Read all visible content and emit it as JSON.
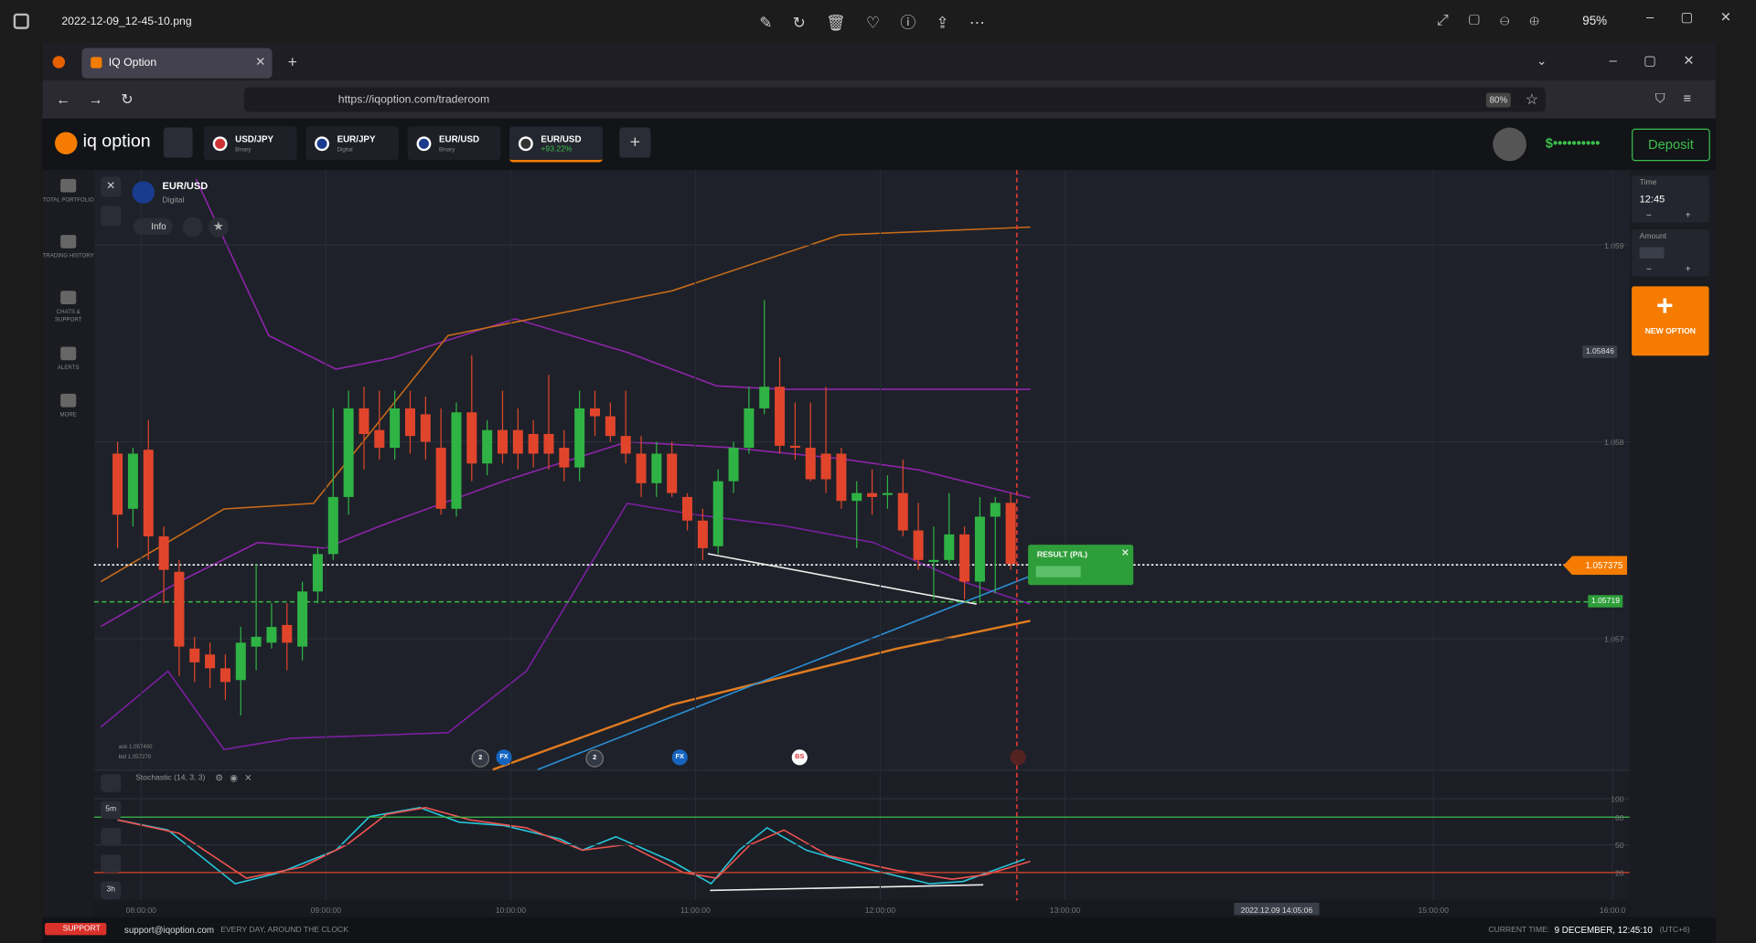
{
  "window": {
    "filename": "2022-12-09_12-45-10.png",
    "zoom": "95%"
  },
  "browser": {
    "tab": "IQ Option",
    "url": "https://iqoption.com/traderoom",
    "zoom": "80%"
  },
  "header": {
    "logo": "iq option",
    "tabs": [
      {
        "pair": "USD/JPY",
        "sub": "Binary"
      },
      {
        "pair": "EUR/JPY",
        "sub": "Digital"
      },
      {
        "pair": "EUR/USD",
        "sub": "Binary"
      },
      {
        "pair": "EUR/USD",
        "sub": "+93.22%"
      }
    ],
    "balance": "$••••••••••",
    "deposit": "Deposit"
  },
  "sidebar": [
    "TOTAL PORTFOLIO",
    "TRADING HISTORY",
    "CHATS & SUPPORT",
    "ALERTS",
    "MORE"
  ],
  "asset": {
    "pair": "EUR/USD",
    "kind": "Digital",
    "info": "Info",
    "ask": "ask 1.057400",
    "bid": "bid 1.057270"
  },
  "chart": {
    "yticks": [
      1.057,
      1.058,
      1.059
    ],
    "candles": [
      [
        1.05794,
        1.058,
        1.05746,
        1.05763
      ],
      [
        1.05766,
        1.05797,
        1.05757,
        1.05794
      ],
      [
        1.05796,
        1.05811,
        1.0574,
        1.05752
      ],
      [
        1.05752,
        1.05757,
        1.05718,
        1.05735
      ],
      [
        1.05734,
        1.0574,
        1.05681,
        1.05696
      ],
      [
        1.05695,
        1.05701,
        1.05678,
        1.05688
      ],
      [
        1.05692,
        1.05698,
        1.05675,
        1.05685
      ],
      [
        1.05685,
        1.05692,
        1.05669,
        1.05678
      ],
      [
        1.05679,
        1.05706,
        1.05661,
        1.05698
      ],
      [
        1.05696,
        1.05738,
        1.05684,
        1.05701
      ],
      [
        1.05698,
        1.05718,
        1.05695,
        1.05706
      ],
      [
        1.05707,
        1.05718,
        1.05684,
        1.05698
      ],
      [
        1.05696,
        1.05729,
        1.05689,
        1.05724
      ],
      [
        1.05724,
        1.05746,
        1.05718,
        1.05743
      ],
      [
        1.05743,
        1.05817,
        1.0574,
        1.05772
      ],
      [
        1.05772,
        1.05826,
        1.05763,
        1.05817
      ],
      [
        1.05817,
        1.05828,
        1.05786,
        1.05804
      ],
      [
        1.05806,
        1.05826,
        1.05791,
        1.05797
      ],
      [
        1.05797,
        1.05826,
        1.05791,
        1.05817
      ],
      [
        1.05817,
        1.05826,
        1.05794,
        1.05803
      ],
      [
        1.05814,
        1.05823,
        1.05791,
        1.058
      ],
      [
        1.05797,
        1.05817,
        1.05763,
        1.05766
      ],
      [
        1.05766,
        1.0582,
        1.05762,
        1.05815
      ],
      [
        1.05815,
        1.05844,
        1.0578,
        1.05789
      ],
      [
        1.05789,
        1.05811,
        1.05783,
        1.05806
      ],
      [
        1.05806,
        1.05826,
        1.05789,
        1.05794
      ],
      [
        1.05806,
        1.05817,
        1.05786,
        1.05794
      ],
      [
        1.05804,
        1.05811,
        1.05787,
        1.05794
      ],
      [
        1.05804,
        1.05834,
        1.05786,
        1.05794
      ],
      [
        1.05797,
        1.05806,
        1.0578,
        1.05787
      ],
      [
        1.05787,
        1.05826,
        1.0578,
        1.05817
      ],
      [
        1.05817,
        1.05826,
        1.05803,
        1.05813
      ],
      [
        1.05813,
        1.0582,
        1.058,
        1.05803
      ],
      [
        1.05803,
        1.05826,
        1.05789,
        1.05794
      ],
      [
        1.05794,
        1.05803,
        1.05772,
        1.05779
      ],
      [
        1.05779,
        1.058,
        1.05772,
        1.05794
      ],
      [
        1.05794,
        1.058,
        1.05772,
        1.05774
      ],
      [
        1.05772,
        1.05774,
        1.05755,
        1.0576
      ],
      [
        1.0576,
        1.05766,
        1.0574,
        1.05746
      ],
      [
        1.05747,
        1.05786,
        1.05743,
        1.0578
      ],
      [
        1.0578,
        1.058,
        1.05774,
        1.05797
      ],
      [
        1.05797,
        1.05828,
        1.05794,
        1.05817
      ],
      [
        1.05817,
        1.05872,
        1.05814,
        1.05828
      ],
      [
        1.05828,
        1.05843,
        1.05794,
        1.05798
      ],
      [
        1.05798,
        1.0582,
        1.05791,
        1.05797
      ],
      [
        1.05797,
        1.0582,
        1.0578,
        1.05781
      ],
      [
        1.05794,
        1.05828,
        1.05774,
        1.05781
      ],
      [
        1.05794,
        1.05797,
        1.05766,
        1.0577
      ],
      [
        1.0577,
        1.0578,
        1.05746,
        1.05774
      ],
      [
        1.05774,
        1.05786,
        1.05763,
        1.05772
      ],
      [
        1.05773,
        1.05783,
        1.05766,
        1.05774
      ],
      [
        1.05774,
        1.05791,
        1.05752,
        1.05755
      ],
      [
        1.05755,
        1.05769,
        1.05735,
        1.0574
      ],
      [
        1.05739,
        1.05757,
        1.0572,
        1.0574
      ],
      [
        1.0574,
        1.05774,
        1.05738,
        1.05753
      ],
      [
        1.05753,
        1.05757,
        1.0572,
        1.05729
      ],
      [
        1.05729,
        1.05772,
        1.05718,
        1.05762
      ],
      [
        1.05762,
        1.05772,
        1.05723,
        1.05769
      ],
      [
        1.05769,
        1.05774,
        1.05735,
        1.05738
      ]
    ],
    "times": [
      "08:00:00",
      "09:00:00",
      "10:00:00",
      "11:00:00",
      "12:00:00",
      "13:00:00",
      "2022.12.09 14:05:06",
      "15:00:00",
      "16:00:0"
    ],
    "tags": {
      "alert": "1.05846",
      "current": "1.057375",
      "strike": "1.05719"
    },
    "markers": [
      "2",
      "FX",
      "2",
      "FX",
      "BS"
    ],
    "result": "RESULT (P/L)"
  },
  "stochastic": {
    "title": "Stochastic (14, 3, 3)",
    "levels": [
      20,
      50,
      80,
      100
    ],
    "buttons": [
      "5m",
      "3h"
    ]
  },
  "panel": {
    "time_label": "Time",
    "time": "12:45",
    "amount_label": "Amount",
    "minus": "−",
    "plus": "+",
    "new_option": "NEW OPTION"
  },
  "footer": {
    "support": "SUPPORT",
    "email": "support@iqoption.com",
    "hours": "EVERY DAY, AROUND THE CLOCK",
    "time_label": "CURRENT TIME:",
    "time": "9 DECEMBER, 12:45:10",
    "tz": "(UTC+6)"
  }
}
